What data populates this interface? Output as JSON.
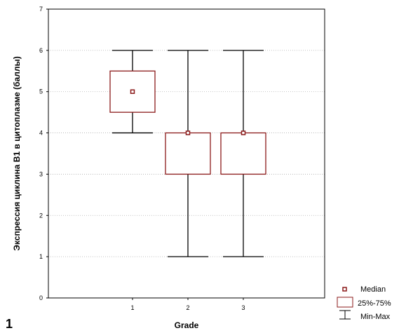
{
  "chart_data": {
    "type": "boxplot",
    "xlabel": "Grade",
    "ylabel": "Экспрессия циклина B1 в цитоплазме  (баллы)",
    "ylim": [
      0,
      7
    ],
    "y_ticks": [
      "0",
      "1",
      "2",
      "3",
      "4",
      "5",
      "6",
      "7"
    ],
    "categories": [
      "1",
      "2",
      "3"
    ],
    "boxes": [
      {
        "category": "1",
        "min": 4,
        "q1": 4.5,
        "median": 5,
        "q3": 5.5,
        "max": 6
      },
      {
        "category": "2",
        "min": 1,
        "q1": 3,
        "median": 4,
        "q3": 4,
        "max": 6
      },
      {
        "category": "3",
        "min": 1,
        "q1": 3,
        "median": 4,
        "q3": 4,
        "max": 6
      }
    ],
    "grid": true,
    "legend": {
      "position": "bottom-right",
      "items": [
        {
          "label": "Median",
          "symbol": "median-square"
        },
        {
          "label": "25%-75%",
          "symbol": "box"
        },
        {
          "label": "Min-Max",
          "symbol": "whisker"
        }
      ]
    },
    "colors": {
      "box": "#8b1a1a",
      "whisker": "#000000",
      "grid": "#b0b0b0"
    }
  },
  "panel_label": "1"
}
